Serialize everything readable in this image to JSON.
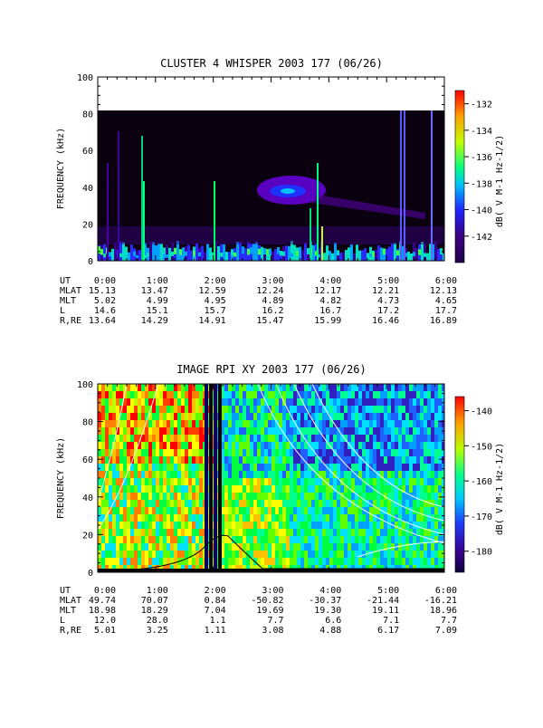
{
  "colors": {
    "background": "#ffffff",
    "axis": "#000000",
    "spectrogram_dark": "#0a0010",
    "colorbar_top": "#ff0000",
    "colorbar_bottom": "#20004a"
  },
  "chart_data": [
    {
      "type": "heatmap",
      "title": "CLUSTER 4 WHISPER 2003 177 (06/26)",
      "ylabel": "FREQUENCY (kHz)",
      "ylim": [
        0,
        100
      ],
      "y_ticks": [
        "0",
        "20",
        "40",
        "60",
        "80",
        "100"
      ],
      "x_ticks": [
        "0:00",
        "1:00",
        "2:00",
        "3:00",
        "4:00",
        "5:00",
        "6:00"
      ],
      "xlim_hours": [
        0,
        6
      ],
      "data_ymax": 80,
      "colorbar": {
        "label": "dB( V M-1 Hz-1/2)",
        "range": [
          -144,
          -131
        ],
        "ticks": [
          "-132",
          "-134",
          "-136",
          "-138",
          "-140",
          "-142"
        ]
      },
      "grid": false,
      "ephemeris": {
        "labels": [
          "UT",
          "MLAT",
          "MLT",
          "L",
          "R,RE"
        ],
        "rows": [
          [
            "0:00",
            "1:00",
            "2:00",
            "3:00",
            "4:00",
            "5:00",
            "6:00"
          ],
          [
            "15.13",
            "13.47",
            "12.59",
            "12.24",
            "12.17",
            "12.21",
            "12.13"
          ],
          [
            "5.02",
            "4.99",
            "4.95",
            "4.89",
            "4.82",
            "4.73",
            "4.65"
          ],
          [
            "14.6",
            "15.1",
            "15.7",
            "16.2",
            "16.7",
            "17.2",
            "17.7"
          ],
          [
            "13.64",
            "14.29",
            "14.91",
            "15.47",
            "15.99",
            "16.46",
            "16.89"
          ]
        ]
      }
    },
    {
      "type": "heatmap",
      "title": "IMAGE RPI XY 2003 177 (06/26)",
      "ylabel": "FREQUENCY (kHz)",
      "ylim": [
        0,
        100
      ],
      "y_ticks": [
        "0",
        "20",
        "40",
        "60",
        "80",
        "100"
      ],
      "x_ticks": [
        "0:00",
        "1:00",
        "2:00",
        "3:00",
        "4:00",
        "5:00",
        "6:00"
      ],
      "xlim_hours": [
        0,
        6
      ],
      "colorbar": {
        "label": "dB( V M-1 Hz-1/2)",
        "range": [
          -186,
          -136
        ],
        "ticks": [
          "-140",
          "-150",
          "-160",
          "-170",
          "-180"
        ]
      },
      "grid": false,
      "ephemeris": {
        "labels": [
          "UT",
          "MLAT",
          "MLT",
          "L",
          "R,RE"
        ],
        "rows": [
          [
            "0:00",
            "1:00",
            "2:00",
            "3:00",
            "4:00",
            "5:00",
            "6:00"
          ],
          [
            "49.74",
            "70.07",
            "0.84",
            "-50.82",
            "-30.37",
            "-21.44",
            "-16.21"
          ],
          [
            "18.98",
            "18.29",
            "7.04",
            "19.69",
            "19.30",
            "19.11",
            "18.96"
          ],
          [
            "12.0",
            "28.0",
            "1.1",
            "7.7",
            "6.6",
            "7.1",
            "7.7"
          ],
          [
            "5.01",
            "3.25",
            "1.11",
            "3.08",
            "4.88",
            "6.17",
            "7.09"
          ]
        ]
      }
    }
  ]
}
